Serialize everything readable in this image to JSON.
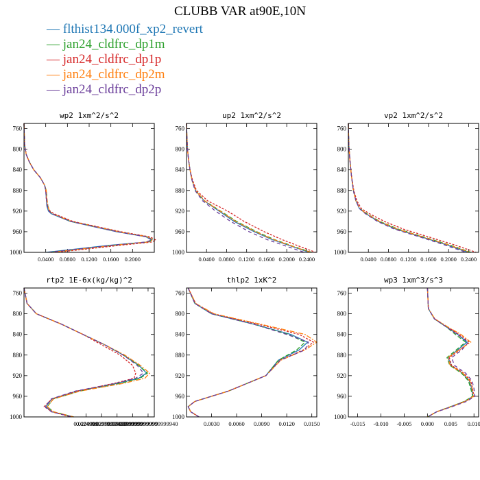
{
  "figure": {
    "title": "CLUBB VAR at90E,10N",
    "legend": [
      {
        "label": "flthist134.000f_xp2_revert",
        "color": "#1f77b4"
      },
      {
        "label": "jan24_cldfrc_dp1m",
        "color": "#2ca02c"
      },
      {
        "label": "jan24_cldfrc_dp1p",
        "color": "#d62728"
      },
      {
        "label": "jan24_cldfrc_dp2m",
        "color": "#ff7f0e"
      },
      {
        "label": "jan24_cldfrc_dp2p",
        "color": "#6a3d9a"
      }
    ]
  },
  "chart_data": [
    {
      "type": "line",
      "title": "wp2  1xm^2/s^2",
      "xlim": [
        0,
        0.24
      ],
      "ylim": [
        1000,
        750
      ],
      "xticks": [
        0.04,
        0.08,
        0.12,
        0.16,
        0.2
      ],
      "xtick_labels": [
        "0.0400",
        "0.0800",
        "0.1200",
        "0.1600",
        "0.2000"
      ],
      "yticks": [
        760,
        800,
        840,
        880,
        920,
        960,
        1000
      ],
      "y": [
        750,
        790,
        810,
        825,
        840,
        855,
        870,
        880,
        895,
        910,
        920,
        925,
        940,
        960,
        970,
        976,
        980,
        986,
        1000
      ],
      "series": [
        {
          "values": [
            0,
            0.001,
            0.004,
            0.01,
            0.018,
            0.03,
            0.038,
            0.04,
            0.041,
            0.042,
            0.045,
            0.05,
            0.085,
            0.17,
            0.225,
            0.235,
            0.225,
            0.16,
            0.04
          ]
        },
        {
          "values": [
            0,
            0.001,
            0.004,
            0.01,
            0.018,
            0.03,
            0.038,
            0.041,
            0.042,
            0.044,
            0.047,
            0.052,
            0.088,
            0.175,
            0.228,
            0.238,
            0.228,
            0.17,
            0.05
          ]
        },
        {
          "values": [
            0,
            0.001,
            0.004,
            0.01,
            0.018,
            0.03,
            0.038,
            0.04,
            0.041,
            0.043,
            0.048,
            0.055,
            0.09,
            0.178,
            0.232,
            0.243,
            0.235,
            0.18,
            0.06
          ]
        },
        {
          "values": [
            0,
            0.001,
            0.004,
            0.01,
            0.018,
            0.03,
            0.038,
            0.041,
            0.042,
            0.044,
            0.047,
            0.052,
            0.087,
            0.174,
            0.227,
            0.237,
            0.226,
            0.168,
            0.05
          ]
        },
        {
          "values": [
            0,
            0.001,
            0.004,
            0.01,
            0.018,
            0.03,
            0.038,
            0.04,
            0.041,
            0.043,
            0.046,
            0.051,
            0.086,
            0.172,
            0.226,
            0.236,
            0.224,
            0.165,
            0.045
          ]
        }
      ]
    },
    {
      "type": "line",
      "title": "up2  1xm^2/s^2",
      "xlim": [
        0,
        0.26
      ],
      "ylim": [
        1000,
        750
      ],
      "xticks": [
        0.04,
        0.08,
        0.12,
        0.16,
        0.2,
        0.24
      ],
      "xtick_labels": [
        "0.0400",
        "0.0800",
        "0.1200",
        "0.1600",
        "0.2000",
        "0.2400"
      ],
      "yticks": [
        760,
        800,
        840,
        880,
        920,
        960,
        1000
      ],
      "y": [
        750,
        780,
        800,
        820,
        840,
        860,
        880,
        900,
        920,
        940,
        960,
        975,
        990,
        1000
      ],
      "series": [
        {
          "values": [
            0,
            0.001,
            0.002,
            0.004,
            0.007,
            0.011,
            0.018,
            0.035,
            0.065,
            0.095,
            0.135,
            0.17,
            0.215,
            0.245
          ]
        },
        {
          "values": [
            0,
            0.001,
            0.002,
            0.004,
            0.007,
            0.011,
            0.018,
            0.036,
            0.068,
            0.1,
            0.14,
            0.175,
            0.218,
            0.25
          ]
        },
        {
          "values": [
            0,
            0.001,
            0.002,
            0.004,
            0.007,
            0.012,
            0.02,
            0.042,
            0.082,
            0.115,
            0.155,
            0.19,
            0.23,
            0.258
          ]
        },
        {
          "values": [
            0,
            0.001,
            0.002,
            0.004,
            0.007,
            0.011,
            0.018,
            0.036,
            0.067,
            0.098,
            0.138,
            0.173,
            0.217,
            0.248
          ]
        },
        {
          "values": [
            0,
            0.001,
            0.002,
            0.004,
            0.007,
            0.011,
            0.017,
            0.032,
            0.058,
            0.088,
            0.125,
            0.16,
            0.205,
            0.235
          ]
        }
      ]
    },
    {
      "type": "line",
      "title": "vp2  1xm^2/s^2",
      "xlim": [
        0,
        0.26
      ],
      "ylim": [
        1000,
        750
      ],
      "xticks": [
        0.04,
        0.08,
        0.12,
        0.16,
        0.2,
        0.24
      ],
      "xtick_labels": [
        "0.0400",
        "0.0800",
        "0.1200",
        "0.1600",
        "0.2000",
        "0.2400"
      ],
      "yticks": [
        760,
        800,
        840,
        880,
        920,
        960,
        1000
      ],
      "y": [
        750,
        790,
        820,
        850,
        880,
        900,
        915,
        925,
        940,
        955,
        970,
        985,
        1000
      ],
      "series": [
        {
          "values": [
            0,
            0.001,
            0.003,
            0.006,
            0.01,
            0.015,
            0.022,
            0.035,
            0.06,
            0.095,
            0.145,
            0.195,
            0.24
          ]
        },
        {
          "values": [
            0,
            0.001,
            0.003,
            0.006,
            0.01,
            0.015,
            0.023,
            0.037,
            0.063,
            0.1,
            0.15,
            0.2,
            0.245
          ]
        },
        {
          "values": [
            0,
            0.001,
            0.003,
            0.006,
            0.011,
            0.017,
            0.026,
            0.042,
            0.072,
            0.11,
            0.16,
            0.21,
            0.255
          ]
        },
        {
          "values": [
            0,
            0.001,
            0.003,
            0.006,
            0.01,
            0.015,
            0.023,
            0.036,
            0.062,
            0.098,
            0.148,
            0.198,
            0.243
          ]
        },
        {
          "values": [
            0,
            0.001,
            0.003,
            0.006,
            0.01,
            0.015,
            0.022,
            0.034,
            0.058,
            0.092,
            0.142,
            0.19,
            0.235
          ]
        }
      ]
    },
    {
      "type": "line",
      "title": "rtp2  1E-6x(kg/kg)^2",
      "xlim": [
        0,
        0.042
      ],
      "ylim": [
        1000,
        750
      ],
      "xticks": [
        0.02,
        0.025,
        0.03,
        0.035,
        0.04
      ],
      "xtick_labels": [
        "0.0200000",
        "0.0249999999999999",
        "0.0299999999999999",
        "0.0349999999999999",
        "0.0399999999999999940"
      ],
      "yticks": [
        760,
        800,
        840,
        880,
        920,
        960,
        1000
      ],
      "y": [
        750,
        780,
        800,
        820,
        840,
        860,
        880,
        900,
        915,
        925,
        935,
        950,
        965,
        980,
        990,
        1000
      ],
      "series": [
        {
          "values": [
            0,
            0.001,
            0.004,
            0.012,
            0.019,
            0.026,
            0.032,
            0.037,
            0.0395,
            0.037,
            0.03,
            0.017,
            0.009,
            0.007,
            0.009,
            0.016
          ]
        },
        {
          "values": [
            0,
            0.001,
            0.004,
            0.012,
            0.019,
            0.026,
            0.032,
            0.037,
            0.0398,
            0.0375,
            0.031,
            0.018,
            0.0095,
            0.0075,
            0.0095,
            0.016
          ]
        },
        {
          "values": [
            0,
            0.001,
            0.004,
            0.012,
            0.019,
            0.025,
            0.031,
            0.035,
            0.036,
            0.0355,
            0.029,
            0.017,
            0.009,
            0.0065,
            0.009,
            0.015
          ]
        },
        {
          "values": [
            0,
            0.001,
            0.004,
            0.012,
            0.019,
            0.026,
            0.0325,
            0.0375,
            0.0405,
            0.039,
            0.032,
            0.018,
            0.0095,
            0.0075,
            0.0095,
            0.016
          ]
        },
        {
          "values": [
            0,
            0.001,
            0.004,
            0.012,
            0.019,
            0.026,
            0.032,
            0.0365,
            0.0385,
            0.036,
            0.0295,
            0.0165,
            0.0088,
            0.0068,
            0.0088,
            0.0155
          ]
        }
      ]
    },
    {
      "type": "line",
      "title": "thlp2  1xK^2",
      "xlim": [
        0,
        0.0156
      ],
      "ylim": [
        1000,
        750
      ],
      "xticks": [
        0.003,
        0.006,
        0.009,
        0.012,
        0.015
      ],
      "xtick_labels": [
        "0.0030",
        "0.0060",
        "0.0090",
        "0.0120",
        "0.0150"
      ],
      "yticks": [
        760,
        800,
        840,
        880,
        920,
        960,
        1000
      ],
      "y": [
        750,
        780,
        800,
        820,
        840,
        855,
        870,
        890,
        920,
        950,
        970,
        980,
        990,
        1000
      ],
      "series": [
        {
          "values": [
            0.0002,
            0.001,
            0.003,
            0.008,
            0.0125,
            0.0145,
            0.0135,
            0.011,
            0.0095,
            0.005,
            0.001,
            0.0002,
            0.0005,
            0.0015
          ]
        },
        {
          "values": [
            0.0002,
            0.001,
            0.003,
            0.008,
            0.0122,
            0.0142,
            0.0132,
            0.011,
            0.0095,
            0.005,
            0.001,
            0.0002,
            0.0005,
            0.0015
          ]
        },
        {
          "values": [
            0.0002,
            0.0011,
            0.0032,
            0.0085,
            0.0135,
            0.0152,
            0.014,
            0.0112,
            0.0095,
            0.005,
            0.001,
            0.0002,
            0.0005,
            0.0015
          ]
        },
        {
          "values": [
            0.0002,
            0.0011,
            0.0033,
            0.0088,
            0.0142,
            0.0156,
            0.0142,
            0.0113,
            0.0095,
            0.005,
            0.001,
            0.0002,
            0.0005,
            0.0015
          ]
        },
        {
          "values": [
            0.0002,
            0.001,
            0.003,
            0.008,
            0.012,
            0.0146,
            0.0142,
            0.0112,
            0.0095,
            0.005,
            0.001,
            0.0002,
            0.0005,
            0.0015
          ]
        }
      ]
    },
    {
      "type": "line",
      "title": "wp3  1xm^3/s^3",
      "xlim": [
        -0.017,
        0.011
      ],
      "ylim": [
        1000,
        750
      ],
      "xticks": [
        -0.015,
        -0.01,
        -0.005,
        0,
        0.005,
        0.01
      ],
      "xtick_labels": [
        "-0.015",
        "-0.010",
        "-0.005",
        "0.000",
        "0.005",
        "0.010"
      ],
      "yticks": [
        760,
        800,
        840,
        880,
        920,
        960,
        1000
      ],
      "y": [
        750,
        790,
        810,
        825,
        840,
        855,
        870,
        885,
        900,
        915,
        930,
        945,
        960,
        970,
        980,
        990,
        1000
      ],
      "series": [
        {
          "values": [
            0,
            0.0002,
            0.0015,
            0.004,
            0.0065,
            0.0085,
            0.0065,
            0.0045,
            0.005,
            0.0075,
            0.009,
            0.0095,
            0.0098,
            0.008,
            0.005,
            0.002,
            0
          ]
        },
        {
          "values": [
            0,
            0.0002,
            0.0015,
            0.004,
            0.006,
            0.0082,
            0.0062,
            0.0042,
            0.0048,
            0.0073,
            0.0088,
            0.0093,
            0.0097,
            0.0079,
            0.005,
            0.002,
            0
          ]
        },
        {
          "values": [
            0,
            0.0002,
            0.0016,
            0.0042,
            0.0068,
            0.009,
            0.007,
            0.0047,
            0.0052,
            0.0078,
            0.0093,
            0.0097,
            0.01,
            0.0082,
            0.0052,
            0.002,
            0
          ]
        },
        {
          "values": [
            0,
            0.0002,
            0.0016,
            0.0043,
            0.0072,
            0.0093,
            0.0068,
            0.0044,
            0.0049,
            0.0076,
            0.0091,
            0.0096,
            0.0099,
            0.0081,
            0.0051,
            0.002,
            0
          ]
        },
        {
          "values": [
            0,
            0.0002,
            0.0015,
            0.004,
            0.0064,
            0.0088,
            0.0074,
            0.0052,
            0.0058,
            0.0082,
            0.0096,
            0.01,
            0.0102,
            0.0084,
            0.0053,
            0.002,
            0
          ]
        }
      ]
    }
  ]
}
